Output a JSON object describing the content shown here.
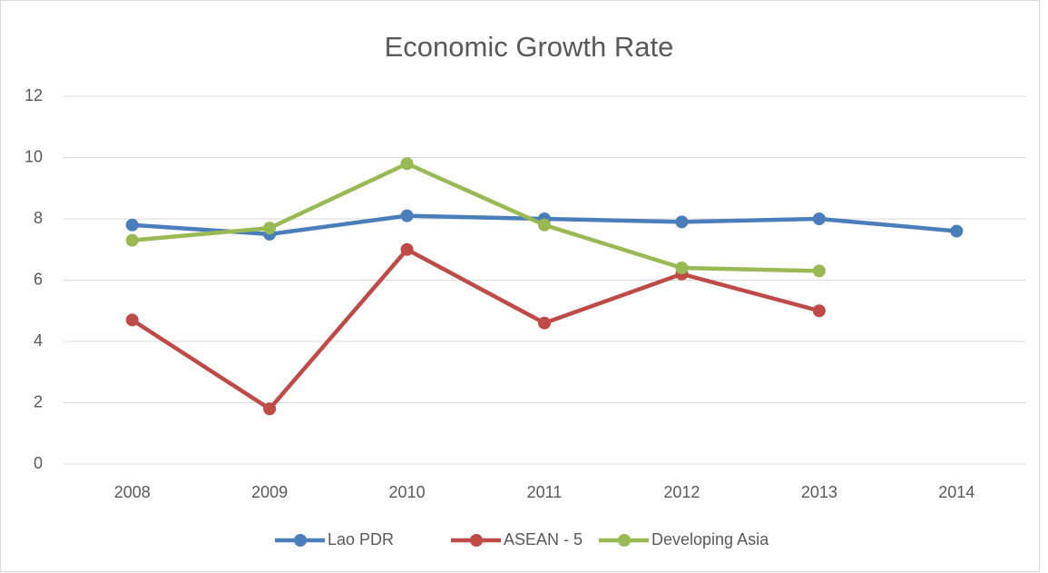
{
  "chart_data": {
    "type": "line",
    "title": "Economic Growth Rate",
    "categories": [
      "2008",
      "2009",
      "2010",
      "2011",
      "2012",
      "2013",
      "2014"
    ],
    "series": [
      {
        "name": "Lao PDR",
        "color": "#4a7ebb",
        "values": [
          7.8,
          7.5,
          8.1,
          8.0,
          7.9,
          8.0,
          7.6
        ]
      },
      {
        "name": "ASEAN - 5",
        "color": "#be4b48",
        "values": [
          4.7,
          1.8,
          7.0,
          4.6,
          6.2,
          5.0,
          null
        ]
      },
      {
        "name": "Developing Asia",
        "color": "#98b954",
        "values": [
          7.3,
          7.7,
          9.8,
          7.8,
          6.4,
          6.3,
          null
        ]
      }
    ],
    "ylim": [
      0,
      12
    ],
    "yticks": [
      0,
      2,
      4,
      6,
      8,
      10,
      12
    ],
    "grid": true,
    "legend": "bottom"
  }
}
